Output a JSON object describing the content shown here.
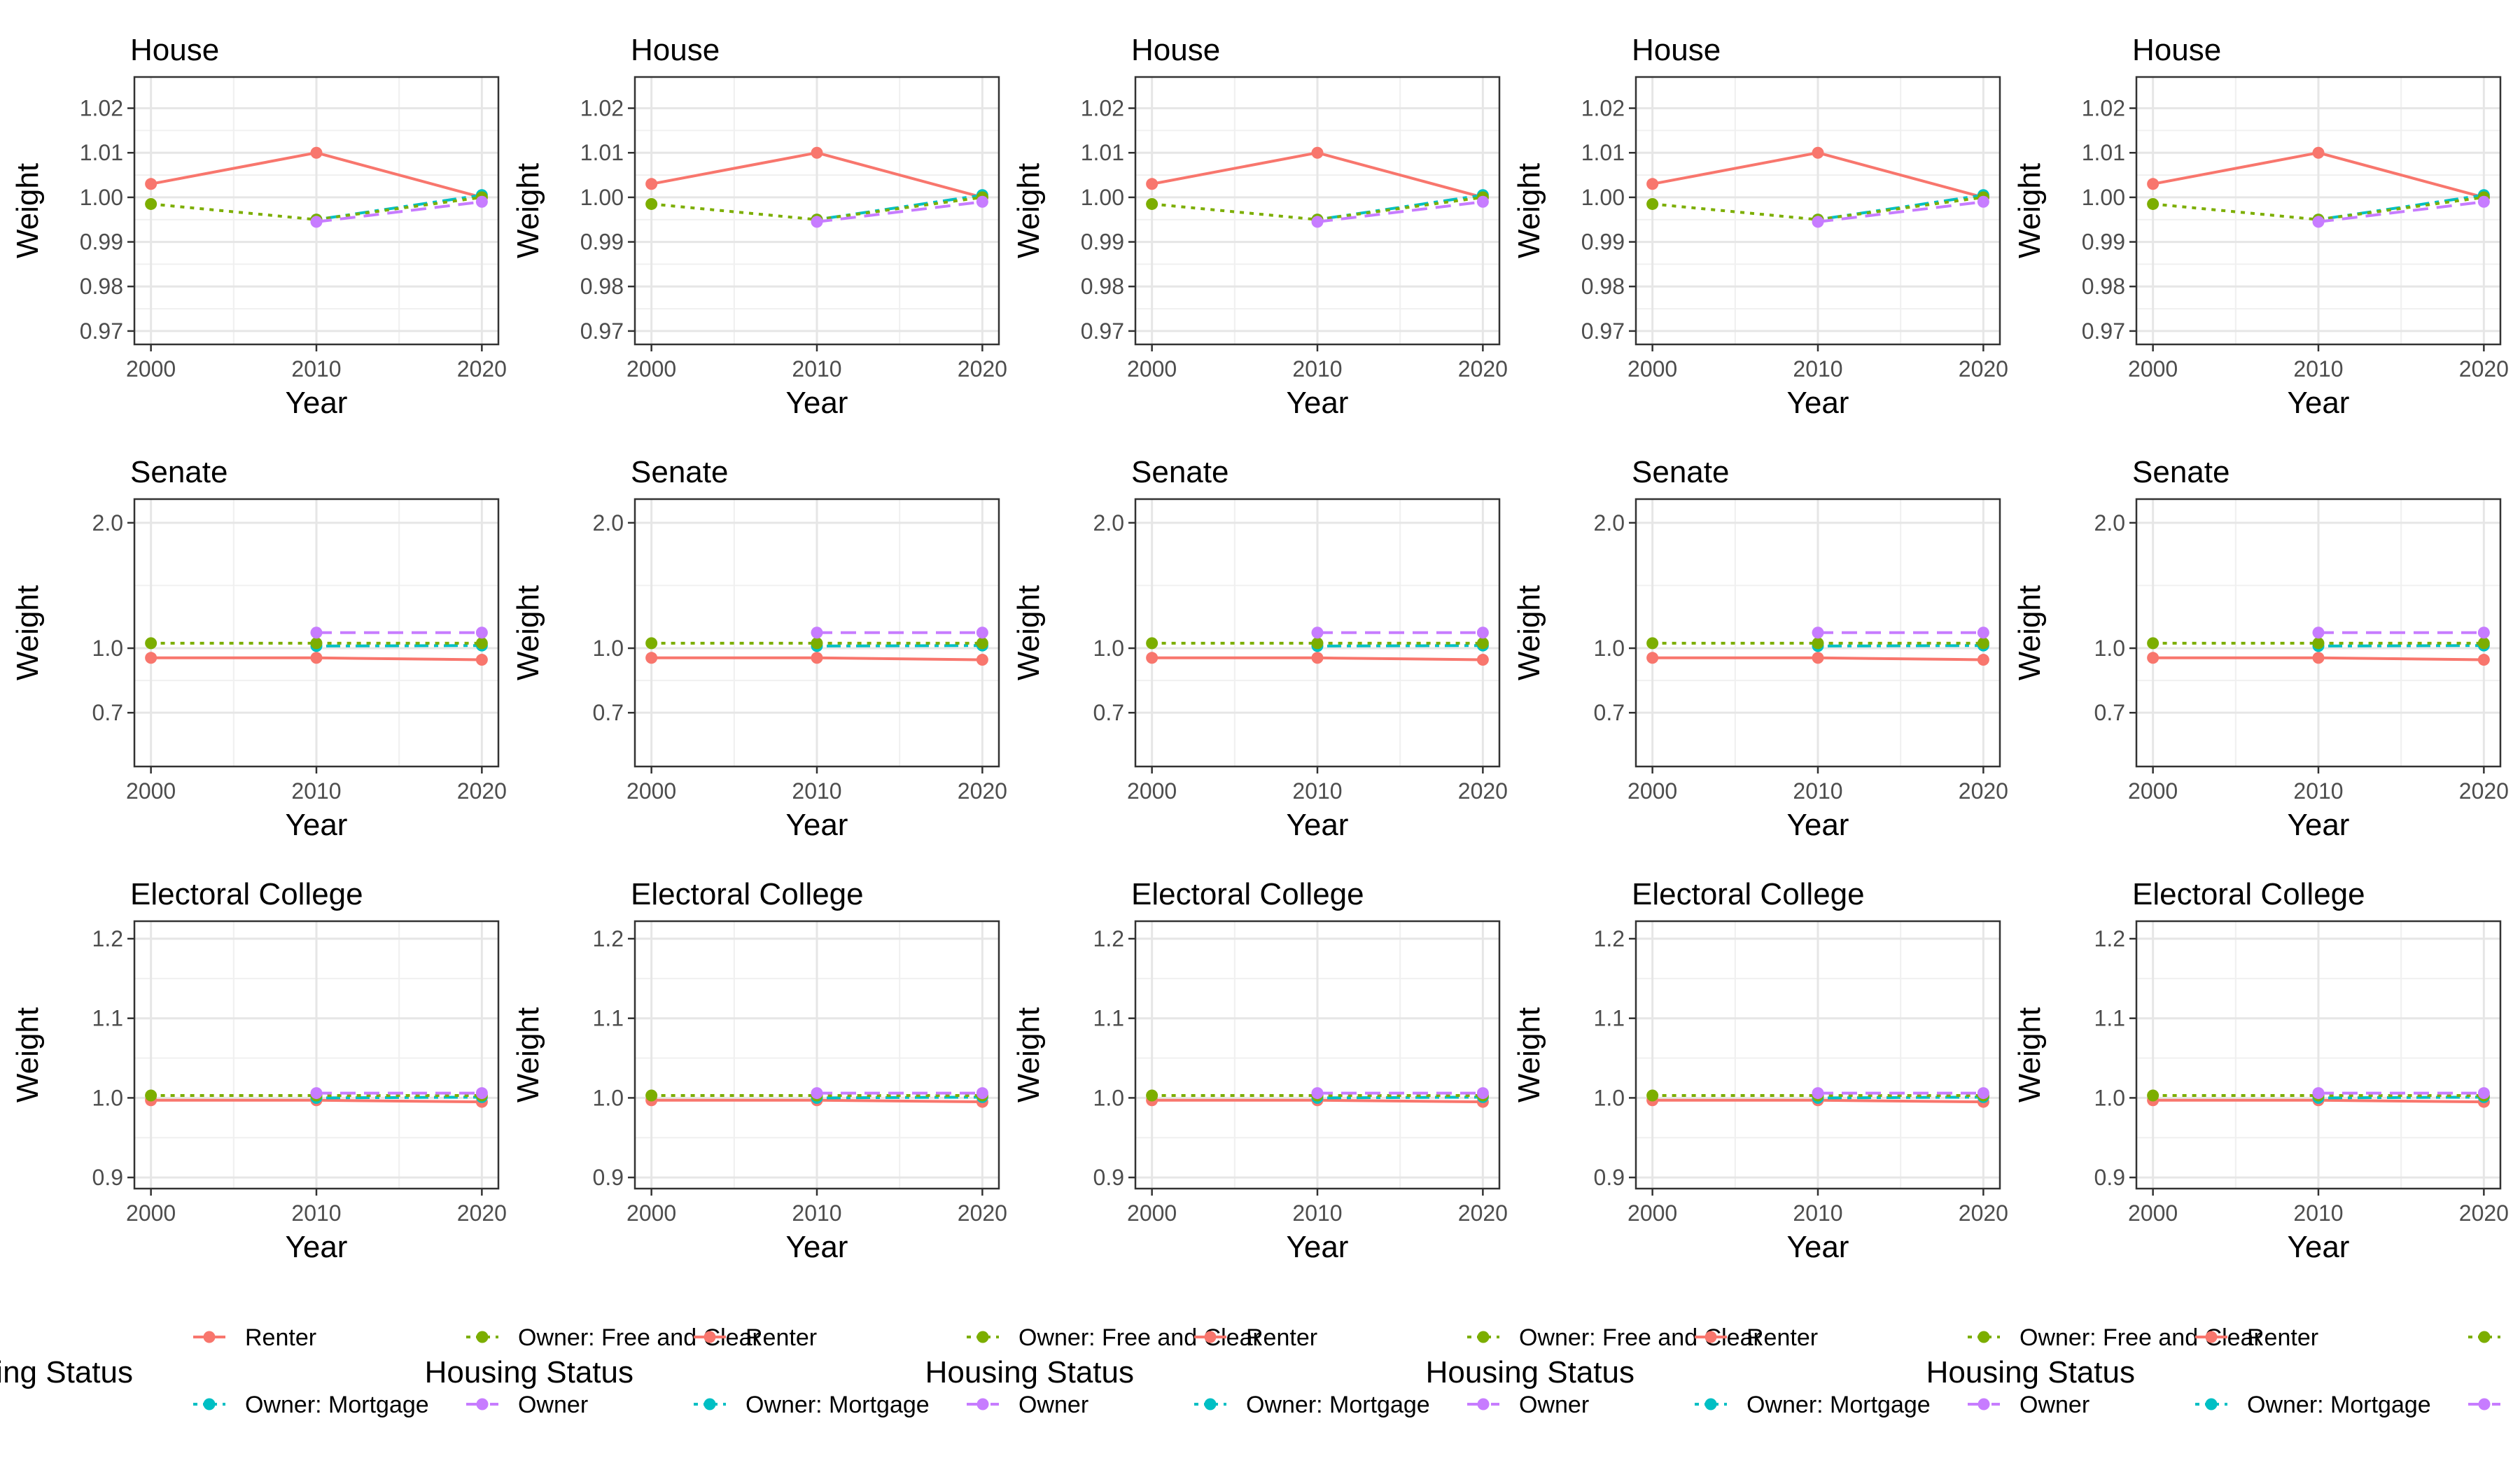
{
  "chart_data": {
    "type": "line",
    "layout": {
      "rows": 3,
      "cols": 5
    },
    "x_label": "Year",
    "y_label": "Weight",
    "x_ticks": [
      2000,
      2010,
      2020
    ],
    "x_range": [
      1999,
      2021
    ],
    "grid": true,
    "legend": {
      "title": "Housing Status",
      "entries": [
        {
          "name": "Renter",
          "color": "#F8766D",
          "linetype": "solid"
        },
        {
          "name": "Owner: Mortgage",
          "color": "#00BFC4",
          "linetype": "dotdash"
        },
        {
          "name": "Owner: Free and Clear",
          "color": "#7CAE00",
          "linetype": "dotted"
        },
        {
          "name": "Owner",
          "color": "#C77CFF",
          "linetype": "dashed"
        }
      ],
      "placement": "bottom"
    },
    "rows_data": [
      {
        "title": "House",
        "ylim": [
          0.967,
          1.027
        ],
        "y_ticks": [
          0.97,
          0.98,
          0.99,
          1.0,
          1.01,
          1.02
        ],
        "y_tick_labels": [
          "0.97",
          "0.98",
          "0.99",
          "1.00",
          "1.01",
          "1.02"
        ],
        "series": [
          {
            "name": "Renter",
            "x": [
              2000,
              2010,
              2020
            ],
            "y": [
              1.003,
              1.01,
              1.0
            ]
          },
          {
            "name": "Owner: Mortgage",
            "x": [
              2010,
              2020
            ],
            "y": [
              0.995,
              1.0005
            ]
          },
          {
            "name": "Owner: Free and Clear",
            "x": [
              2000,
              2010,
              2020
            ],
            "y": [
              0.9985,
              0.995,
              1.0
            ]
          },
          {
            "name": "Owner",
            "x": [
              2010,
              2020
            ],
            "y": [
              0.9945,
              0.999
            ]
          }
        ]
      },
      {
        "title": "Senate",
        "ylim": [
          0.52,
          2.28
        ],
        "y_ticks": [
          0.7,
          1.0,
          2.0
        ],
        "y_tick_labels": [
          "0.7",
          "1.0",
          "2.0"
        ],
        "y_log": true,
        "series": [
          {
            "name": "Renter",
            "x": [
              2000,
              2010,
              2020
            ],
            "y": [
              0.948,
              0.948,
              0.938
            ]
          },
          {
            "name": "Owner: Mortgage",
            "x": [
              2010,
              2020
            ],
            "y": [
              1.012,
              1.015
            ]
          },
          {
            "name": "Owner: Free and Clear",
            "x": [
              2000,
              2010,
              2020
            ],
            "y": [
              1.028,
              1.028,
              1.028
            ]
          },
          {
            "name": "Owner",
            "x": [
              2010,
              2020
            ],
            "y": [
              1.09,
              1.09
            ]
          }
        ]
      },
      {
        "title": "Electoral College",
        "ylim": [
          0.886,
          1.222
        ],
        "y_ticks": [
          0.9,
          1.0,
          1.1,
          1.2
        ],
        "y_tick_labels": [
          "0.9",
          "1.0",
          "1.1",
          "1.2"
        ],
        "series": [
          {
            "name": "Renter",
            "x": [
              2000,
              2010,
              2020
            ],
            "y": [
              0.997,
              0.997,
              0.995
            ]
          },
          {
            "name": "Owner: Mortgage",
            "x": [
              2010,
              2020
            ],
            "y": [
              1.0,
              1.001
            ]
          },
          {
            "name": "Owner: Free and Clear",
            "x": [
              2000,
              2010,
              2020
            ],
            "y": [
              1.003,
              1.003,
              1.003
            ]
          },
          {
            "name": "Owner",
            "x": [
              2010,
              2020
            ],
            "y": [
              1.006,
              1.006
            ]
          }
        ]
      }
    ]
  }
}
